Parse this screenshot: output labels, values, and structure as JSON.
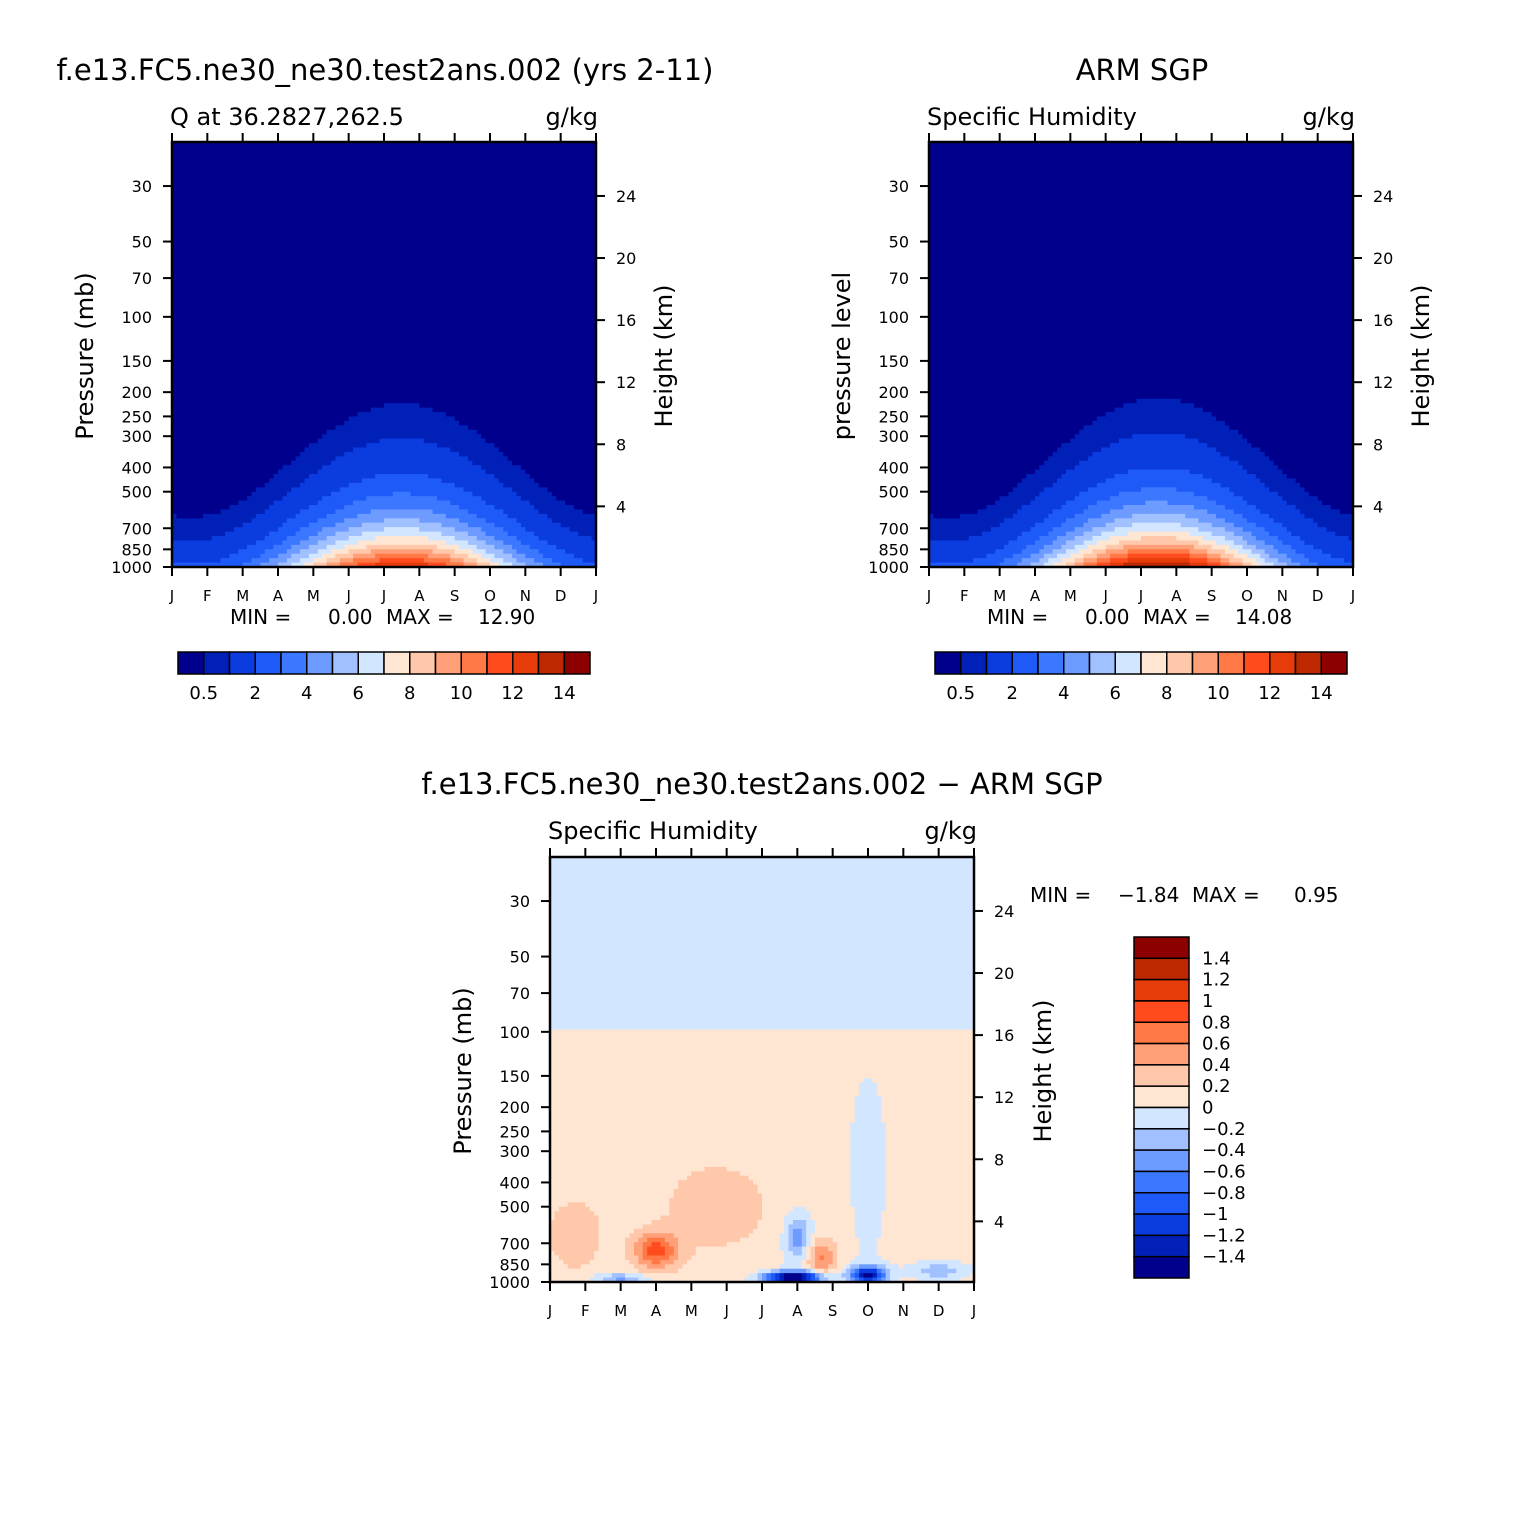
{
  "chart_data": [
    {
      "type": "heatmap",
      "title": "f.e13.FC5.ne30_ne30.test2ans.002 (yrs 2-11)",
      "left_subtitle": "Q at 36.2827,262.5",
      "right_subtitle": "g/kg",
      "ylabel": "Pressure (mb)",
      "y2label": "Height (km)",
      "x_months": [
        "J",
        "F",
        "M",
        "A",
        "M",
        "J",
        "J",
        "A",
        "S",
        "O",
        "N",
        "D",
        "J"
      ],
      "y_pressure_ticks": [
        30,
        50,
        70,
        100,
        150,
        200,
        250,
        300,
        400,
        500,
        700,
        850,
        1000
      ],
      "y2_height_ticks": [
        4,
        8,
        12,
        16,
        20,
        24
      ],
      "ylim": [
        20,
        1000
      ],
      "y_scale": "log",
      "min_label": "MIN =",
      "min_value": "0.00",
      "max_label": "MAX =",
      "max_value": "12.90",
      "colorbar_ticks": [
        "0.5",
        "2",
        "4",
        "6",
        "8",
        "10",
        "12",
        "14"
      ],
      "colorbar_orientation": "horizontal"
    },
    {
      "type": "heatmap",
      "title": "ARM SGP",
      "left_subtitle": "Specific Humidity",
      "right_subtitle": "g/kg",
      "ylabel": "pressure level",
      "y2label": "Height (km)",
      "x_months": [
        "J",
        "F",
        "M",
        "A",
        "M",
        "J",
        "J",
        "A",
        "S",
        "O",
        "N",
        "D",
        "J"
      ],
      "y_pressure_ticks": [
        30,
        50,
        70,
        100,
        150,
        200,
        250,
        300,
        400,
        500,
        700,
        850,
        1000
      ],
      "y2_height_ticks": [
        4,
        8,
        12,
        16,
        20,
        24
      ],
      "ylim": [
        20,
        1000
      ],
      "y_scale": "log",
      "min_label": "MIN =",
      "min_value": "0.00",
      "max_label": "MAX =",
      "max_value": "14.08",
      "colorbar_ticks": [
        "0.5",
        "2",
        "4",
        "6",
        "8",
        "10",
        "12",
        "14"
      ],
      "colorbar_orientation": "horizontal"
    },
    {
      "type": "heatmap",
      "title": "f.e13.FC5.ne30_ne30.test2ans.002 − ARM SGP",
      "left_subtitle": "Specific Humidity",
      "right_subtitle": "g/kg",
      "ylabel": "Pressure (mb)",
      "y2label": "Height (km)",
      "x_months": [
        "J",
        "F",
        "M",
        "A",
        "M",
        "J",
        "J",
        "A",
        "S",
        "O",
        "N",
        "D",
        "J"
      ],
      "y_pressure_ticks": [
        30,
        50,
        70,
        100,
        150,
        200,
        250,
        300,
        400,
        500,
        700,
        850,
        1000
      ],
      "y2_height_ticks": [
        4,
        8,
        12,
        16,
        20,
        24
      ],
      "ylim": [
        20,
        1000
      ],
      "y_scale": "log",
      "min_label": "MIN =",
      "min_value": "−1.84",
      "max_label": "MAX =",
      "max_value": "0.95",
      "colorbar_ticks": [
        "1.4",
        "1.2",
        "1",
        "0.8",
        "0.6",
        "0.4",
        "0.2",
        "0",
        "−0.2",
        "−0.4",
        "−0.6",
        "−0.8",
        "−1",
        "−1.2",
        "−1.4"
      ],
      "colorbar_orientation": "vertical"
    }
  ],
  "colors": {
    "sequential": [
      "#00008c",
      "#0020b8",
      "#0a3ce0",
      "#1e5af8",
      "#3c78ff",
      "#6e9bff",
      "#a0c0ff",
      "#d2e6ff",
      "#ffe6d2",
      "#ffc8aa",
      "#ffa078",
      "#ff7846",
      "#ff4b1e",
      "#e63c0a",
      "#be2800",
      "#8c0000"
    ],
    "diverging": [
      "#00008c",
      "#0020b8",
      "#0a3ce0",
      "#1e5af8",
      "#3c78ff",
      "#6e9bff",
      "#a0c0ff",
      "#d2e6ff",
      "#ffe6d2",
      "#ffc8aa",
      "#ffa078",
      "#ff7846",
      "#ff4b1e",
      "#e63c0a",
      "#be2800",
      "#8c0000"
    ]
  }
}
